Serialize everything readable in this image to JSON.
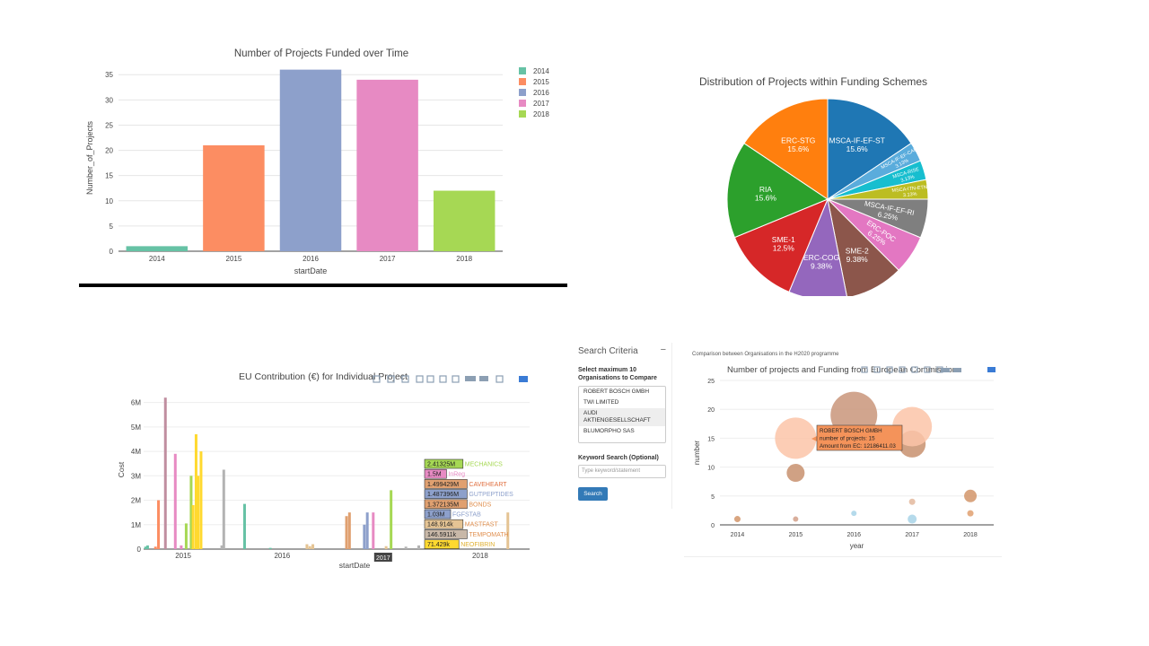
{
  "colors": {
    "mode_bar": "#8c9fb3",
    "accent": "#337ab7"
  },
  "chart_data": [
    {
      "id": "projects-over-time",
      "type": "bar",
      "title": "Number of Projects Funded over Time",
      "xlabel": "startDate",
      "ylabel": "Number_of_Projects",
      "categories": [
        "2014",
        "2015",
        "2016",
        "2017",
        "2018"
      ],
      "values": [
        1,
        21,
        36,
        34,
        12
      ],
      "colors": [
        "#66c2a5",
        "#fc8d62",
        "#8da0cb",
        "#e78ac3",
        "#a6d854"
      ],
      "yticks": [
        0,
        5,
        10,
        15,
        20,
        25,
        30,
        35
      ],
      "ylim": [
        0,
        37
      ],
      "legend": [
        "2014",
        "2015",
        "2016",
        "2017",
        "2018"
      ],
      "legend_position": "right",
      "grid": true
    },
    {
      "id": "funding-schemes",
      "type": "pie",
      "title": "Distribution of Projects within Funding Schemes",
      "slices": [
        {
          "label": "MSCA-IF-EF-ST",
          "value": 15.6,
          "text": "15.6%",
          "color": "#1f77b4"
        },
        {
          "label": "MSCA-IF-EF-CAR",
          "value": 3.13,
          "text": "3.13%",
          "color": "#5aacdc"
        },
        {
          "label": "MSCA-RISE",
          "value": 3.13,
          "text": "3.13%",
          "color": "#17becf"
        },
        {
          "label": "MSCA-ITN-ETN",
          "value": 3.13,
          "text": "3.13%",
          "color": "#bcbd22"
        },
        {
          "label": "MSCA-IF-EF-RI",
          "value": 6.25,
          "text": "6.25%",
          "color": "#7f7f7f"
        },
        {
          "label": "ERC-POC",
          "value": 6.25,
          "text": "6.25%",
          "color": "#e377c2"
        },
        {
          "label": "SME-2",
          "value": 9.38,
          "text": "9.38%",
          "color": "#8c564b"
        },
        {
          "label": "ERC-COG",
          "value": 9.38,
          "text": "9.38%",
          "color": "#9467bd"
        },
        {
          "label": "SME-1",
          "value": 12.5,
          "text": "12.5%",
          "color": "#d62728"
        },
        {
          "label": "RIA",
          "value": 15.6,
          "text": "15.6%",
          "color": "#2ca02c"
        },
        {
          "label": "ERC-STG",
          "value": 15.6,
          "text": "15.6%",
          "color": "#ff7f0e"
        }
      ]
    },
    {
      "id": "eu-contribution",
      "type": "bar",
      "title": "EU Contribution (€) for Individual Project",
      "xlabel": "startDate",
      "ylabel": "Cost",
      "yticks": [
        "0",
        "1M",
        "2M",
        "3M",
        "4M",
        "5M",
        "6M"
      ],
      "ytick_values": [
        0,
        1,
        2,
        3,
        4,
        5,
        6
      ],
      "xticks": [
        "2015",
        "2016",
        "2017",
        "2018"
      ],
      "xtick_values": [
        2015,
        2016,
        2017,
        2018
      ],
      "ylim": [
        0,
        6.5
      ],
      "xlim": [
        2014.6,
        2018.5
      ],
      "bars": [
        {
          "x": 2014.62,
          "y": 0.1,
          "color": "#66c2a5"
        },
        {
          "x": 2014.64,
          "y": 0.15,
          "color": "#66c2a5"
        },
        {
          "x": 2014.72,
          "y": 0.1,
          "color": "#fc8d62"
        },
        {
          "x": 2014.75,
          "y": 2.0,
          "color": "#fc8d62"
        },
        {
          "x": 2014.82,
          "y": 6.2,
          "color": "#c08ea0"
        },
        {
          "x": 2014.92,
          "y": 3.9,
          "color": "#e78ac3"
        },
        {
          "x": 2014.98,
          "y": 0.15,
          "color": "#e78ac3"
        },
        {
          "x": 2015.03,
          "y": 1.05,
          "color": "#a6d854"
        },
        {
          "x": 2015.08,
          "y": 3.0,
          "color": "#a6d854"
        },
        {
          "x": 2015.1,
          "y": 1.8,
          "color": "#ffd92f"
        },
        {
          "x": 2015.13,
          "y": 4.7,
          "color": "#ffd92f"
        },
        {
          "x": 2015.15,
          "y": 3.0,
          "color": "#ffd92f"
        },
        {
          "x": 2015.18,
          "y": 4.0,
          "color": "#ffd92f"
        },
        {
          "x": 2015.39,
          "y": 0.15,
          "color": "#b3b3b3"
        },
        {
          "x": 2015.41,
          "y": 3.25,
          "color": "#b3b3b3"
        },
        {
          "x": 2015.62,
          "y": 1.85,
          "color": "#66c2a5"
        },
        {
          "x": 2015.88,
          "y": 0.05,
          "color": "#66c2a5"
        },
        {
          "x": 2016.25,
          "y": 0.2,
          "color": "#e5c494"
        },
        {
          "x": 2016.28,
          "y": 0.12,
          "color": "#e5c494"
        },
        {
          "x": 2016.31,
          "y": 0.2,
          "color": "#e5c494"
        },
        {
          "x": 2016.65,
          "y": 1.35,
          "color": "#e0a070"
        },
        {
          "x": 2016.68,
          "y": 1.5,
          "color": "#e0a070"
        },
        {
          "x": 2016.83,
          "y": 1.0,
          "color": "#8da0cb"
        },
        {
          "x": 2016.86,
          "y": 1.5,
          "color": "#8da0cb"
        },
        {
          "x": 2016.92,
          "y": 1.5,
          "color": "#e78ac3"
        },
        {
          "x": 2017.05,
          "y": 0.12,
          "color": "#e5c494"
        },
        {
          "x": 2017.1,
          "y": 2.41,
          "color": "#a6d854"
        },
        {
          "x": 2017.25,
          "y": 0.1,
          "color": "#b3b3b3"
        },
        {
          "x": 2017.38,
          "y": 0.15,
          "color": "#b3b3b3"
        },
        {
          "x": 2018.28,
          "y": 1.5,
          "color": "#e5c494"
        }
      ],
      "hover_labels": [
        {
          "value": "2.41325M",
          "name": "MECHANICS",
          "color": "#a6d854",
          "text_color": "#a6d854"
        },
        {
          "value": "1.5M",
          "name": "InReg",
          "color": "#e78ac3",
          "text_color": "#e78ac3"
        },
        {
          "value": "1.499429M",
          "name": "CAVEHEART",
          "color": "#e0a070",
          "text_color": "#e07040"
        },
        {
          "value": "1.487396M",
          "name": "GUTPEPTIDES",
          "color": "#8da0cb",
          "text_color": "#8da0cb"
        },
        {
          "value": "1.372135M",
          "name": "BONDS",
          "color": "#e0a070",
          "text_color": "#e09050"
        },
        {
          "value": "1.03M",
          "name": "FGFSTAB",
          "color": "#8da0cb",
          "text_color": "#8da0cb"
        },
        {
          "value": "148.914k",
          "name": "MASTFAST",
          "color": "#e5c494",
          "text_color": "#e09050"
        },
        {
          "value": "146.5911k",
          "name": "TEMPOMATH",
          "color": "#c8b8a8",
          "text_color": "#e09050"
        },
        {
          "value": "71.429k",
          "name": "NEOFIBRIN",
          "color": "#ffd92f",
          "text_color": "#e0b030"
        }
      ],
      "x_hover_label": "2017"
    },
    {
      "id": "org-comparison",
      "type": "scatter",
      "title": "Number of projects and Funding from European Commission",
      "xlabel": "year",
      "ylabel": "number",
      "xticks": [
        2014,
        2015,
        2016,
        2017,
        2018
      ],
      "yticks": [
        0,
        5,
        10,
        15,
        20,
        25
      ],
      "xlim": [
        2013.7,
        2018.4
      ],
      "ylim": [
        0,
        25
      ],
      "points": [
        {
          "x": 2014,
          "y": 1,
          "r": 3.5,
          "color": "#d2956a"
        },
        {
          "x": 2015,
          "y": 1,
          "r": 3,
          "color": "#d2a08a"
        },
        {
          "x": 2015,
          "y": 9,
          "r": 10,
          "color": "#c8906e"
        },
        {
          "x": 2015,
          "y": 15,
          "r": 23,
          "color": "#fcc4a8"
        },
        {
          "x": 2016,
          "y": 2,
          "r": 3,
          "color": "#a8d4e8"
        },
        {
          "x": 2016,
          "y": 19,
          "r": 26,
          "color": "#c9957a"
        },
        {
          "x": 2017,
          "y": 1,
          "r": 5,
          "color": "#a8d4e8"
        },
        {
          "x": 2017,
          "y": 4,
          "r": 3.5,
          "color": "#e3b89e"
        },
        {
          "x": 2017,
          "y": 14,
          "r": 15,
          "color": "#c8906e"
        },
        {
          "x": 2017,
          "y": 17,
          "r": 22,
          "color": "#fcc4a8"
        },
        {
          "x": 2018,
          "y": 2,
          "r": 3.5,
          "color": "#e0a070"
        },
        {
          "x": 2018,
          "y": 5,
          "r": 7,
          "color": "#d2956a"
        }
      ],
      "tooltip": {
        "lines": [
          "ROBERT BOSCH GMBH",
          "number of projects: 15",
          "Amount from EC: 12186411.03"
        ],
        "color": "#f4935a"
      }
    }
  ],
  "search_panel": {
    "title": "Search Criteria",
    "minimize": "−",
    "orgs_label": "Select maximum 10 Organisations to Compare",
    "organisations": [
      "ROBERT BOSCH GMBH",
      "TWI LIMITED",
      "AUDI AKTIENGESELLSCHAFT",
      "BLUMORPHO SAS"
    ],
    "keyword_label": "Keyword Search (Optional)",
    "keyword_placeholder": "Type keyword/statement",
    "search_button": "Search"
  },
  "comparison_header": "Comparison between Organisations in the H2020 programme"
}
